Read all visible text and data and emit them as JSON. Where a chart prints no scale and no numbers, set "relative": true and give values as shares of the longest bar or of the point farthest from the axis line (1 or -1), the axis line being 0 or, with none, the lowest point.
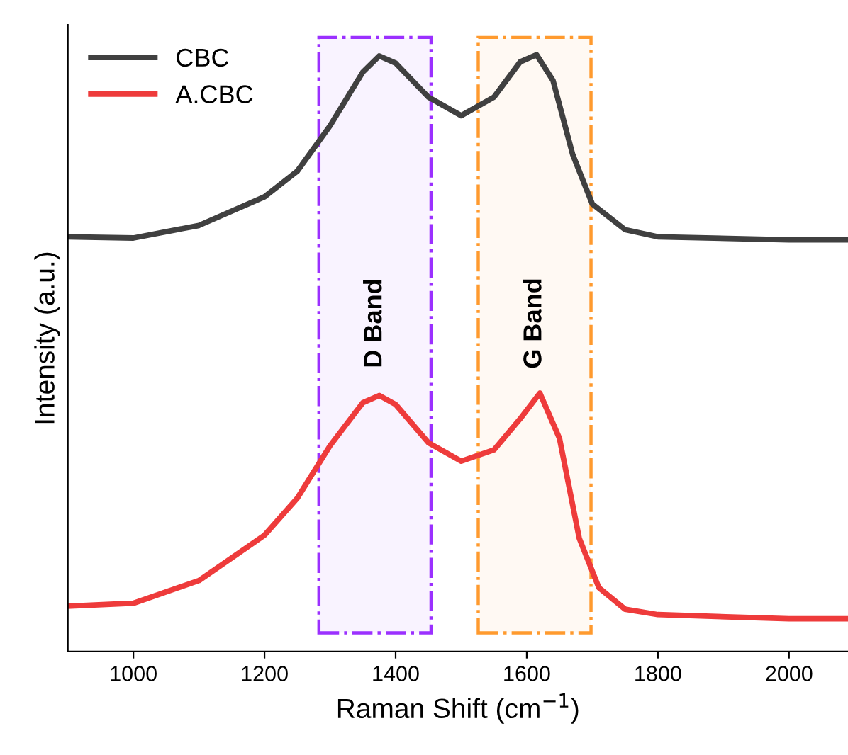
{
  "chart_data": {
    "type": "line",
    "relative": true,
    "xlabel": "Raman Shift (cm$^{−1}$)",
    "ylabel": "Intensity (a.u.)",
    "xlim": [
      900,
      2090
    ],
    "xticks": [
      1000,
      1200,
      1400,
      1600,
      1800,
      2000
    ],
    "legend": "top left",
    "grid": false,
    "line_style": "solid",
    "marker": "none",
    "tick_labels": "x",
    "bands": [
      {
        "axis": "x",
        "from": 1283,
        "to": 1454,
        "label": "D Band",
        "color": "#9b30ff"
      },
      {
        "axis": "x",
        "from": 1526,
        "to": 1698,
        "label": "G Band",
        "color": "#ff9a2e"
      }
    ],
    "series": [
      {
        "name": "CBC",
        "color": "#404040",
        "x": [
          900,
          1000,
          1100,
          1200,
          1250,
          1300,
          1350,
          1375,
          1400,
          1450,
          1500,
          1550,
          1590,
          1615,
          1640,
          1670,
          1700,
          1750,
          1800,
          2000,
          2090
        ],
        "values": [
          0.695,
          0.693,
          0.714,
          0.762,
          0.805,
          0.881,
          0.971,
          0.998,
          0.986,
          0.929,
          0.898,
          0.929,
          0.988,
          1.0,
          0.957,
          0.833,
          0.75,
          0.707,
          0.695,
          0.69,
          0.69
        ]
      },
      {
        "name": "A.CBC",
        "color": "#ee3b3b",
        "x": [
          900,
          1000,
          1100,
          1200,
          1250,
          1300,
          1350,
          1375,
          1400,
          1450,
          1500,
          1550,
          1590,
          1620,
          1650,
          1680,
          1710,
          1750,
          1800,
          2000,
          2090
        ],
        "values": [
          0.076,
          0.081,
          0.119,
          0.195,
          0.257,
          0.345,
          0.417,
          0.429,
          0.414,
          0.35,
          0.319,
          0.338,
          0.39,
          0.433,
          0.357,
          0.19,
          0.107,
          0.071,
          0.062,
          0.055,
          0.055
        ]
      }
    ]
  }
}
